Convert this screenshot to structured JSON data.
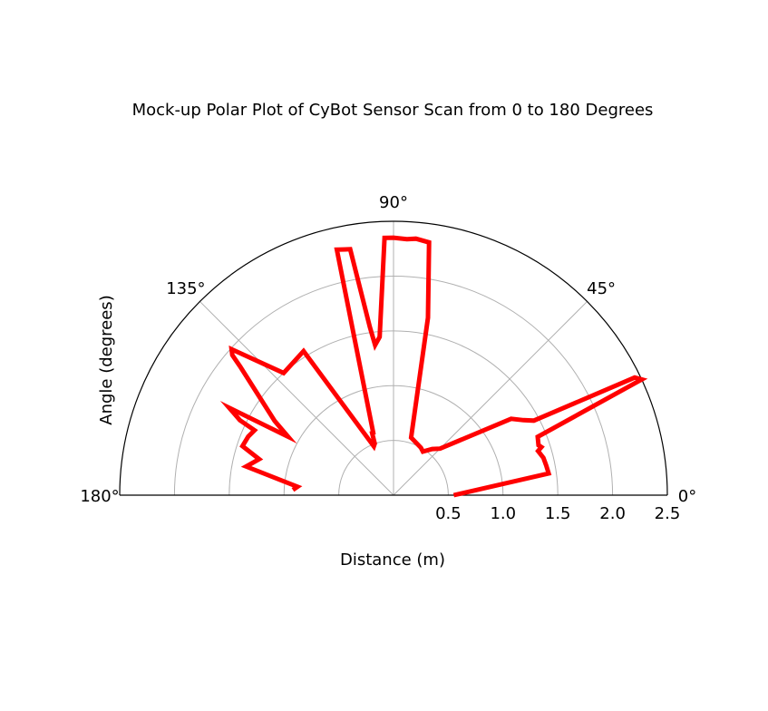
{
  "chart_data": {
    "type": "line",
    "projection": "polar",
    "angle_range": [
      0,
      180
    ],
    "title": "Mock-up Polar Plot of CyBot Sensor Scan from 0 to 180 Degrees",
    "xlabel": "Distance (m)",
    "ylabel": "Angle (degrees)",
    "rlim": [
      0,
      2.5
    ],
    "r_ticks": [
      "0.5",
      "1.0",
      "1.5",
      "2.0",
      "2.5"
    ],
    "theta_ticks": [
      "0°",
      "45°",
      "90°",
      "135°",
      "180°"
    ],
    "grid": true,
    "series": [
      {
        "color": "#ff0000",
        "theta_deg": [
          0,
          8,
          11,
          14,
          17,
          18,
          19,
          22,
          25,
          26,
          28,
          30,
          33,
          45,
          50,
          56,
          60,
          73,
          79,
          82,
          85,
          87,
          90,
          92,
          95,
          97,
          98,
          100,
          103,
          108,
          109,
          110,
          112,
          122,
          132,
          138,
          139,
          140,
          148,
          151,
          152,
          154,
          155,
          158,
          162,
          165,
          169,
          175,
          177
        ],
        "r": [
          0.55,
          1.43,
          1.42,
          1.41,
          1.38,
          1.42,
          1.4,
          1.42,
          2.5,
          2.45,
          1.45,
          1.37,
          1.28,
          0.6,
          0.55,
          0.48,
          0.5,
          0.55,
          1.65,
          2.33,
          2.35,
          2.34,
          2.35,
          2.35,
          1.45,
          1.38,
          1.55,
          2.28,
          2.3,
          0.6,
          0.6,
          0.5,
          0.48,
          1.55,
          1.5,
          1.99,
          1.95,
          1.83,
          1.28,
          1.1,
          1.7,
          1.56,
          1.4,
          1.43,
          1.45,
          1.27,
          1.37,
          0.88,
          0.92
        ]
      }
    ]
  }
}
